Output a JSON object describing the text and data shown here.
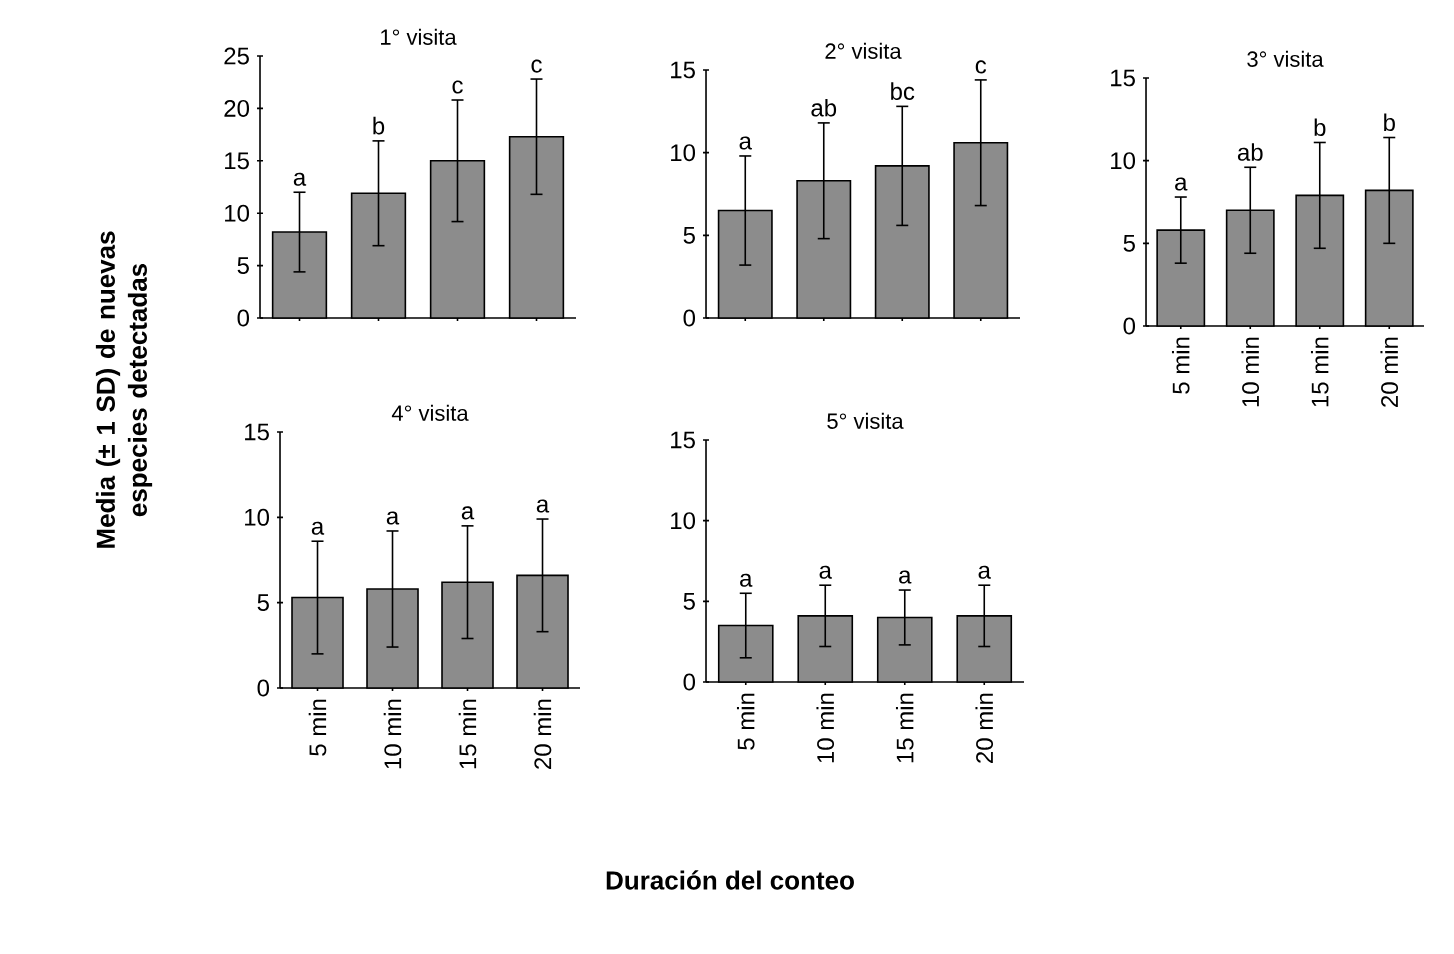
{
  "chart_data": [
    {
      "type": "bar",
      "title": "1° visita",
      "categories": [
        null,
        null,
        null,
        null
      ],
      "values": [
        8.2,
        11.9,
        15.0,
        17.3
      ],
      "errors": [
        3.8,
        5.0,
        5.8,
        5.5
      ],
      "color": "#8c8c8c",
      "ylim": [
        0,
        25
      ],
      "yticks": [
        0,
        5,
        10,
        15,
        20,
        25
      ],
      "tick_labels": "y",
      "annotations": [
        "a",
        "b",
        "c",
        "c"
      ]
    },
    {
      "type": "bar",
      "title": "2° visita",
      "categories": [
        null,
        null,
        null,
        null
      ],
      "values": [
        6.5,
        8.3,
        9.2,
        10.6
      ],
      "errors": [
        3.3,
        3.5,
        3.6,
        3.8
      ],
      "color": "#8c8c8c",
      "ylim": [
        0,
        15
      ],
      "yticks": [
        0,
        5,
        10,
        15
      ],
      "tick_labels": "y",
      "annotations": [
        "a",
        "ab",
        "bc",
        "c"
      ]
    },
    {
      "type": "bar",
      "title": "3° visita",
      "categories": [
        "5 min",
        "10 min",
        "15 min",
        "20 min"
      ],
      "values": [
        5.8,
        7.0,
        7.9,
        8.2
      ],
      "errors": [
        2.0,
        2.6,
        3.2,
        3.2
      ],
      "color": "#8c8c8c",
      "ylim": [
        0,
        15
      ],
      "yticks": [
        0,
        5,
        10,
        15
      ],
      "annotations": [
        "a",
        "ab",
        "b",
        "b"
      ]
    },
    {
      "type": "bar",
      "title": "4° visita",
      "xlabel": "Duración del conteo",
      "ylabel": "Media (± 1 SD) de nuevas especies detectadas",
      "categories": [
        "5 min",
        "10 min",
        "15 min",
        "20 min"
      ],
      "values": [
        5.3,
        5.8,
        6.2,
        6.6
      ],
      "errors": [
        3.3,
        3.4,
        3.3,
        3.3
      ],
      "color": "#8c8c8c",
      "ylim": [
        0,
        15
      ],
      "yticks": [
        0,
        5,
        10,
        15
      ],
      "annotations": [
        "a",
        "a",
        "a",
        "a"
      ]
    },
    {
      "type": "bar",
      "title": "5° visita",
      "categories": [
        "5 min",
        "10 min",
        "15 min",
        "20 min"
      ],
      "values": [
        3.5,
        4.1,
        4.0,
        4.1
      ],
      "errors": [
        2.0,
        1.9,
        1.7,
        1.9
      ],
      "color": "#8c8c8c",
      "ylim": [
        0,
        15
      ],
      "yticks": [
        0,
        5,
        10,
        15
      ],
      "annotations": [
        "a",
        "a",
        "a",
        "a"
      ]
    }
  ]
}
